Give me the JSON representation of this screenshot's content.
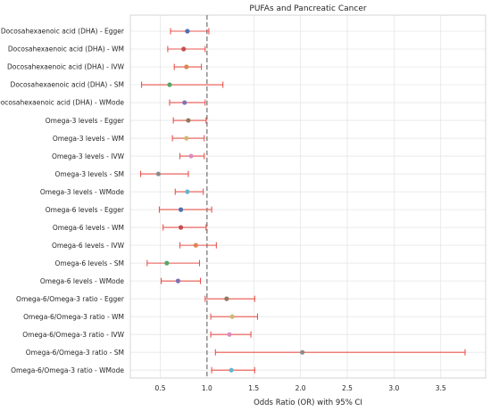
{
  "chart_data": {
    "type": "forest",
    "title": "PUFAs and Pancreatic Cancer",
    "xlabel": "Odds Ratio (OR) with 95% CI",
    "ylabel": "",
    "xlim": [
      0.18,
      3.98
    ],
    "xticks": [
      "0.5",
      "1.0",
      "1.5",
      "2.0",
      "2.5",
      "3.0",
      "3.5"
    ],
    "reference_line": 1.0,
    "grid": true,
    "ci_color": "#e8554e",
    "rows": [
      {
        "label": "Docosahexaenoic acid (DHA) - Egger",
        "or": 0.79,
        "lo": 0.61,
        "hi": 1.02,
        "color": "#4c72b0"
      },
      {
        "label": "Docosahexaenoic acid (DHA) - WM",
        "or": 0.75,
        "lo": 0.58,
        "hi": 0.98,
        "color": "#c44e52"
      },
      {
        "label": "Docosahexaenoic acid (DHA) - IVW",
        "or": 0.78,
        "lo": 0.65,
        "hi": 0.94,
        "color": "#dd8452"
      },
      {
        "label": "Docosahexaenoic acid (DHA) - SM",
        "or": 0.6,
        "lo": 0.3,
        "hi": 1.17,
        "color": "#55a868"
      },
      {
        "label": "Docosahexaenoic acid (DHA) - WMode",
        "or": 0.76,
        "lo": 0.6,
        "hi": 0.98,
        "color": "#8172b3"
      },
      {
        "label": "Omega-3 levels - Egger",
        "or": 0.8,
        "lo": 0.64,
        "hi": 0.99,
        "color": "#937860"
      },
      {
        "label": "Omega-3 levels - WM",
        "or": 0.78,
        "lo": 0.63,
        "hi": 0.97,
        "color": "#ccb974"
      },
      {
        "label": "Omega-3 levels - IVW",
        "or": 0.83,
        "lo": 0.71,
        "hi": 0.97,
        "color": "#da8bc3"
      },
      {
        "label": "Omega-3 levels - SM",
        "or": 0.48,
        "lo": 0.29,
        "hi": 0.8,
        "color": "#8c8c8c"
      },
      {
        "label": "Omega-3 levels - WMode",
        "or": 0.79,
        "lo": 0.66,
        "hi": 0.96,
        "color": "#64b5cd"
      },
      {
        "label": "Omega-6 levels - Egger",
        "or": 0.72,
        "lo": 0.49,
        "hi": 1.05,
        "color": "#4c72b0"
      },
      {
        "label": "Omega-6 levels - WM",
        "or": 0.72,
        "lo": 0.53,
        "hi": 0.99,
        "color": "#c44e52"
      },
      {
        "label": "Omega-6 levels - IVW",
        "or": 0.88,
        "lo": 0.71,
        "hi": 1.1,
        "color": "#dd8452"
      },
      {
        "label": "Omega-6 levels - SM",
        "or": 0.57,
        "lo": 0.36,
        "hi": 0.92,
        "color": "#55a868"
      },
      {
        "label": "Omega-6 levels - WMode",
        "or": 0.69,
        "lo": 0.51,
        "hi": 0.93,
        "color": "#8172b3"
      },
      {
        "label": "Omega-6/Omega-3 ratio - Egger",
        "or": 1.21,
        "lo": 0.98,
        "hi": 1.51,
        "color": "#937860"
      },
      {
        "label": "Omega-6/Omega-3 ratio - WM",
        "or": 1.27,
        "lo": 1.04,
        "hi": 1.54,
        "color": "#ccb974"
      },
      {
        "label": "Omega-6/Omega-3 ratio - IVW",
        "or": 1.24,
        "lo": 1.04,
        "hi": 1.47,
        "color": "#da8bc3"
      },
      {
        "label": "Omega-6/Omega-3 ratio - SM",
        "or": 2.02,
        "lo": 1.09,
        "hi": 3.76,
        "color": "#8c8c8c"
      },
      {
        "label": "Omega-6/Omega-3 ratio - WMode",
        "or": 1.26,
        "lo": 1.05,
        "hi": 1.51,
        "color": "#64b5cd"
      }
    ]
  }
}
